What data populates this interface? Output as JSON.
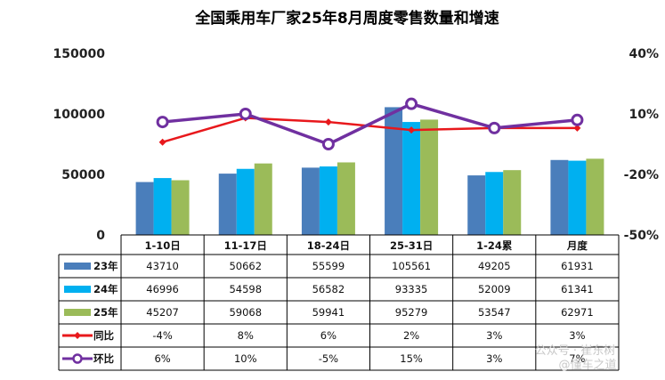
{
  "chart_data": {
    "type": "bar",
    "title": "全国乘用车厂家25年8月周度零售数量和增速",
    "categories": [
      "1-10日",
      "11-17日",
      "18-24日",
      "25-31日",
      "1-24累",
      "月度"
    ],
    "ylim": [
      0,
      150000
    ],
    "yticks": [
      "0",
      "50000",
      "100000",
      "150000"
    ],
    "y2lim": [
      -50,
      40
    ],
    "y2ticks": [
      "-50%",
      "-20%",
      "10%",
      "40%"
    ],
    "series": [
      {
        "name": "23年",
        "kind": "bar",
        "color": "#4a7ebb",
        "values": [
          43710,
          50662,
          55599,
          105561,
          49205,
          61931
        ],
        "labels": [
          "43710",
          "50662",
          "55599",
          "105561",
          "49205",
          "61931"
        ]
      },
      {
        "name": "24年",
        "kind": "bar",
        "color": "#00b0f0",
        "values": [
          46996,
          54598,
          56582,
          93335,
          52009,
          61341
        ],
        "labels": [
          "46996",
          "54598",
          "56582",
          "93335",
          "52009",
          "61341"
        ]
      },
      {
        "name": "25年",
        "kind": "bar",
        "color": "#9bbb59",
        "values": [
          45207,
          59068,
          59941,
          95279,
          53547,
          62971
        ],
        "labels": [
          "45207",
          "59068",
          "59941",
          "95279",
          "53547",
          "62971"
        ]
      },
      {
        "name": "同比",
        "kind": "line",
        "color": "#e8181c",
        "values": [
          -4,
          8,
          6,
          2,
          3,
          3
        ],
        "labels": [
          "-4%",
          "8%",
          "6%",
          "2%",
          "3%",
          "3%"
        ]
      },
      {
        "name": "环比",
        "kind": "line",
        "color": "#7030a0",
        "values": [
          6,
          10,
          -5,
          15,
          3,
          7
        ],
        "labels": [
          "6%",
          "10%",
          "-5%",
          "15%",
          "3%",
          "7%"
        ]
      }
    ]
  },
  "watermark": [
    "公众号 · 崔东树",
    "@懂车之道"
  ]
}
